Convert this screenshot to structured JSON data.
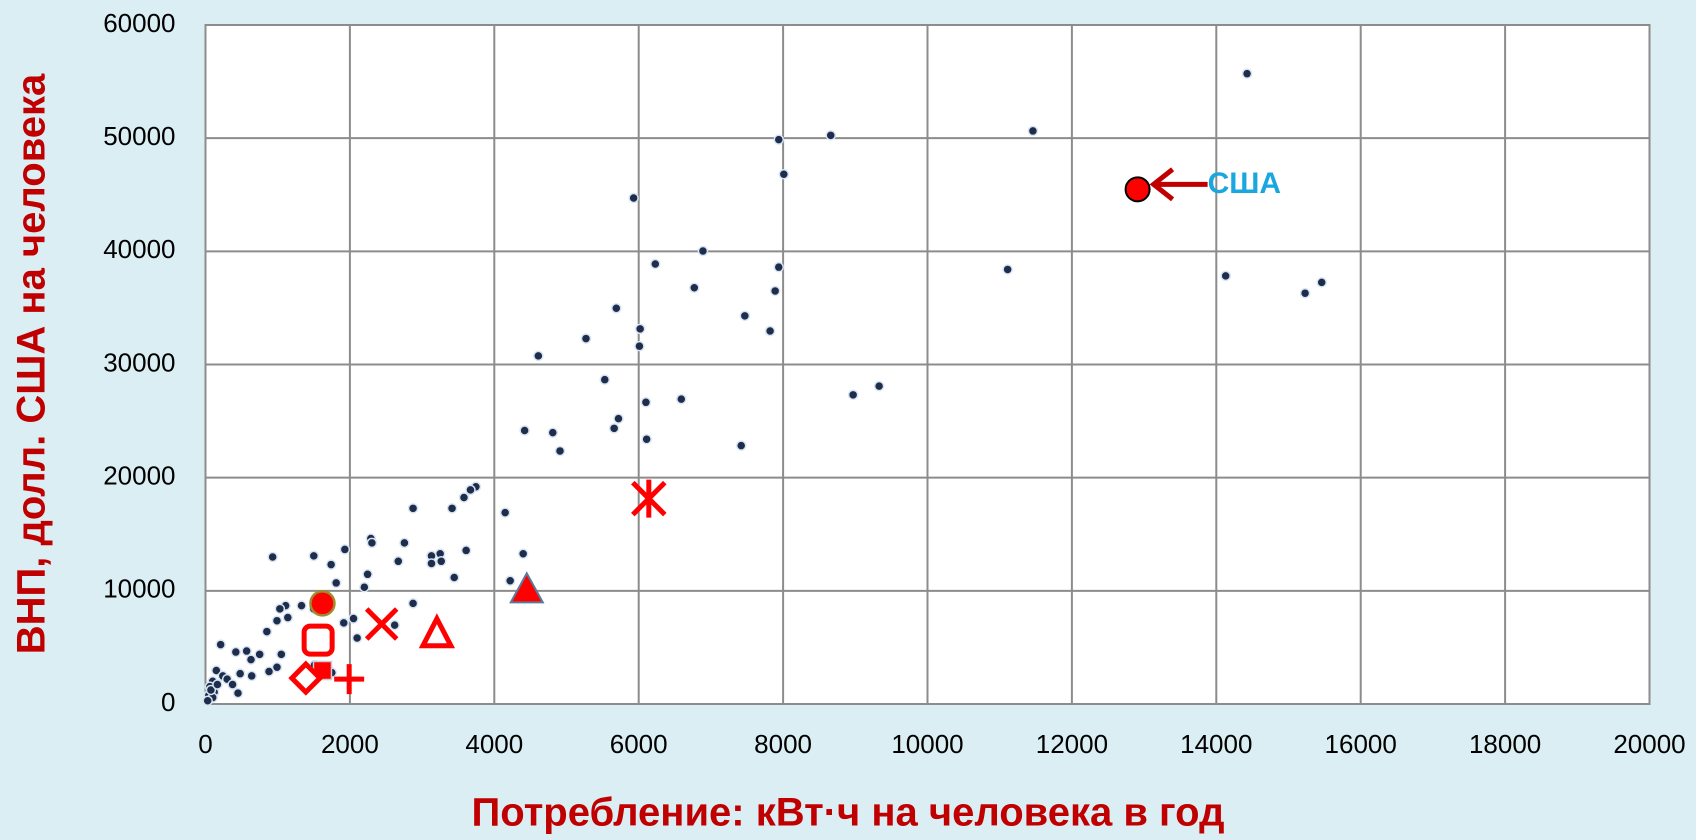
{
  "chart_data": {
    "type": "scatter",
    "xlabel": "Потребление: кВт·ч на человека в год",
    "ylabel": "ВНП, долл. США на человека",
    "xlim": [
      0,
      20000
    ],
    "xticks": [
      0,
      2000,
      4000,
      6000,
      8000,
      10000,
      12000,
      14000,
      16000,
      18000,
      20000
    ],
    "ylim": [
      0,
      60000
    ],
    "yticks": [
      0,
      10000,
      20000,
      30000,
      40000,
      50000,
      60000
    ],
    "grid": true,
    "series": [
      {
        "color": "#1f2d4d",
        "marker": "dot",
        "x": [
          14426,
          11460,
          8660,
          7940,
          5930,
          8010,
          6890,
          6230,
          7940,
          6770,
          7890,
          11110,
          14130,
          15230,
          15460,
          5690,
          7470,
          6020,
          7820,
          6010,
          5270,
          4610,
          5530,
          6590,
          6100,
          5720,
          5660,
          6110,
          4420,
          4810,
          4910,
          7420,
          8970,
          9330,
          3745,
          3670,
          3580,
          3415,
          2875,
          4150,
          4400,
          4220,
          3610,
          3445,
          3250,
          3265,
          3130,
          3130,
          2755,
          2670,
          2290,
          2305,
          2245,
          2200,
          1930,
          1740,
          1500,
          930,
          2875,
          2620,
          2050,
          1915,
          1810,
          2100,
          1330,
          1500,
          1110,
          1030,
          990,
          1140,
          850,
          750,
          420,
          570,
          630,
          640,
          1050,
          990,
          880,
          480,
          450,
          210,
          150,
          240,
          100,
          60,
          120,
          45,
          100,
          75,
          30,
          300,
          165,
          1690,
          1750,
          1510,
          375
        ],
        "values": [
          55700,
          50640,
          50250,
          49870,
          44710,
          46810,
          40030,
          38880,
          38600,
          36780,
          36500,
          38400,
          37830,
          36300,
          37260,
          34970,
          34300,
          33150,
          32960,
          31620,
          32290,
          30760,
          28660,
          26940,
          26660,
          25220,
          24360,
          23400,
          24170,
          23980,
          22360,
          22830,
          27320,
          28090,
          19200,
          18920,
          18250,
          17290,
          17290,
          16910,
          13280,
          10890,
          13570,
          11180,
          13280,
          12610,
          13090,
          12420,
          14240,
          12610,
          14620,
          14240,
          11460,
          10320,
          13660,
          12320,
          13090,
          12990,
          8890,
          6970,
          7550,
          7170,
          10700,
          5830,
          8690,
          8410,
          8690,
          8410,
          7360,
          7640,
          6400,
          4390,
          4590,
          4680,
          3920,
          2480,
          4390,
          3250,
          2870,
          2680,
          960,
          5250,
          2960,
          2480,
          2010,
          1530,
          1050,
          760,
          570,
          1240,
          290,
          2200,
          1720,
          3250,
          2770,
          3440,
          1720
        ]
      },
      {
        "color": "#ff0000",
        "marker": "big-circle",
        "annotation": "США",
        "x": [
          12910
        ],
        "values": [
          45480
        ]
      },
      {
        "color": "#ff0000",
        "marker": "asterisk",
        "x": [
          6140
        ],
        "values": [
          18150
        ]
      },
      {
        "color": "#ff0000",
        "marker": "triangle-filled",
        "x": [
          4450
        ],
        "values": [
          10130
        ]
      },
      {
        "color": "#ff0000",
        "marker": "triangle-open",
        "x": [
          3205
        ],
        "values": [
          6210
        ]
      },
      {
        "color": "#ff0000",
        "marker": "x",
        "x": [
          2440
        ],
        "values": [
          7070
        ]
      },
      {
        "color": "#ff0000",
        "marker": "circle",
        "x": [
          1620
        ],
        "values": [
          8890
        ]
      },
      {
        "color": "#ff0000",
        "marker": "square-open",
        "x": [
          1560
        ],
        "values": [
          5640
        ]
      },
      {
        "color": "#ff0000",
        "marker": "square-filled",
        "x": [
          1620
        ],
        "values": [
          2960
        ]
      },
      {
        "color": "#ff0000",
        "marker": "diamond-open",
        "x": [
          1390
        ],
        "values": [
          2290
        ]
      },
      {
        "color": "#ff0000",
        "marker": "plus",
        "x": [
          1990
        ],
        "values": [
          2200
        ]
      }
    ]
  }
}
